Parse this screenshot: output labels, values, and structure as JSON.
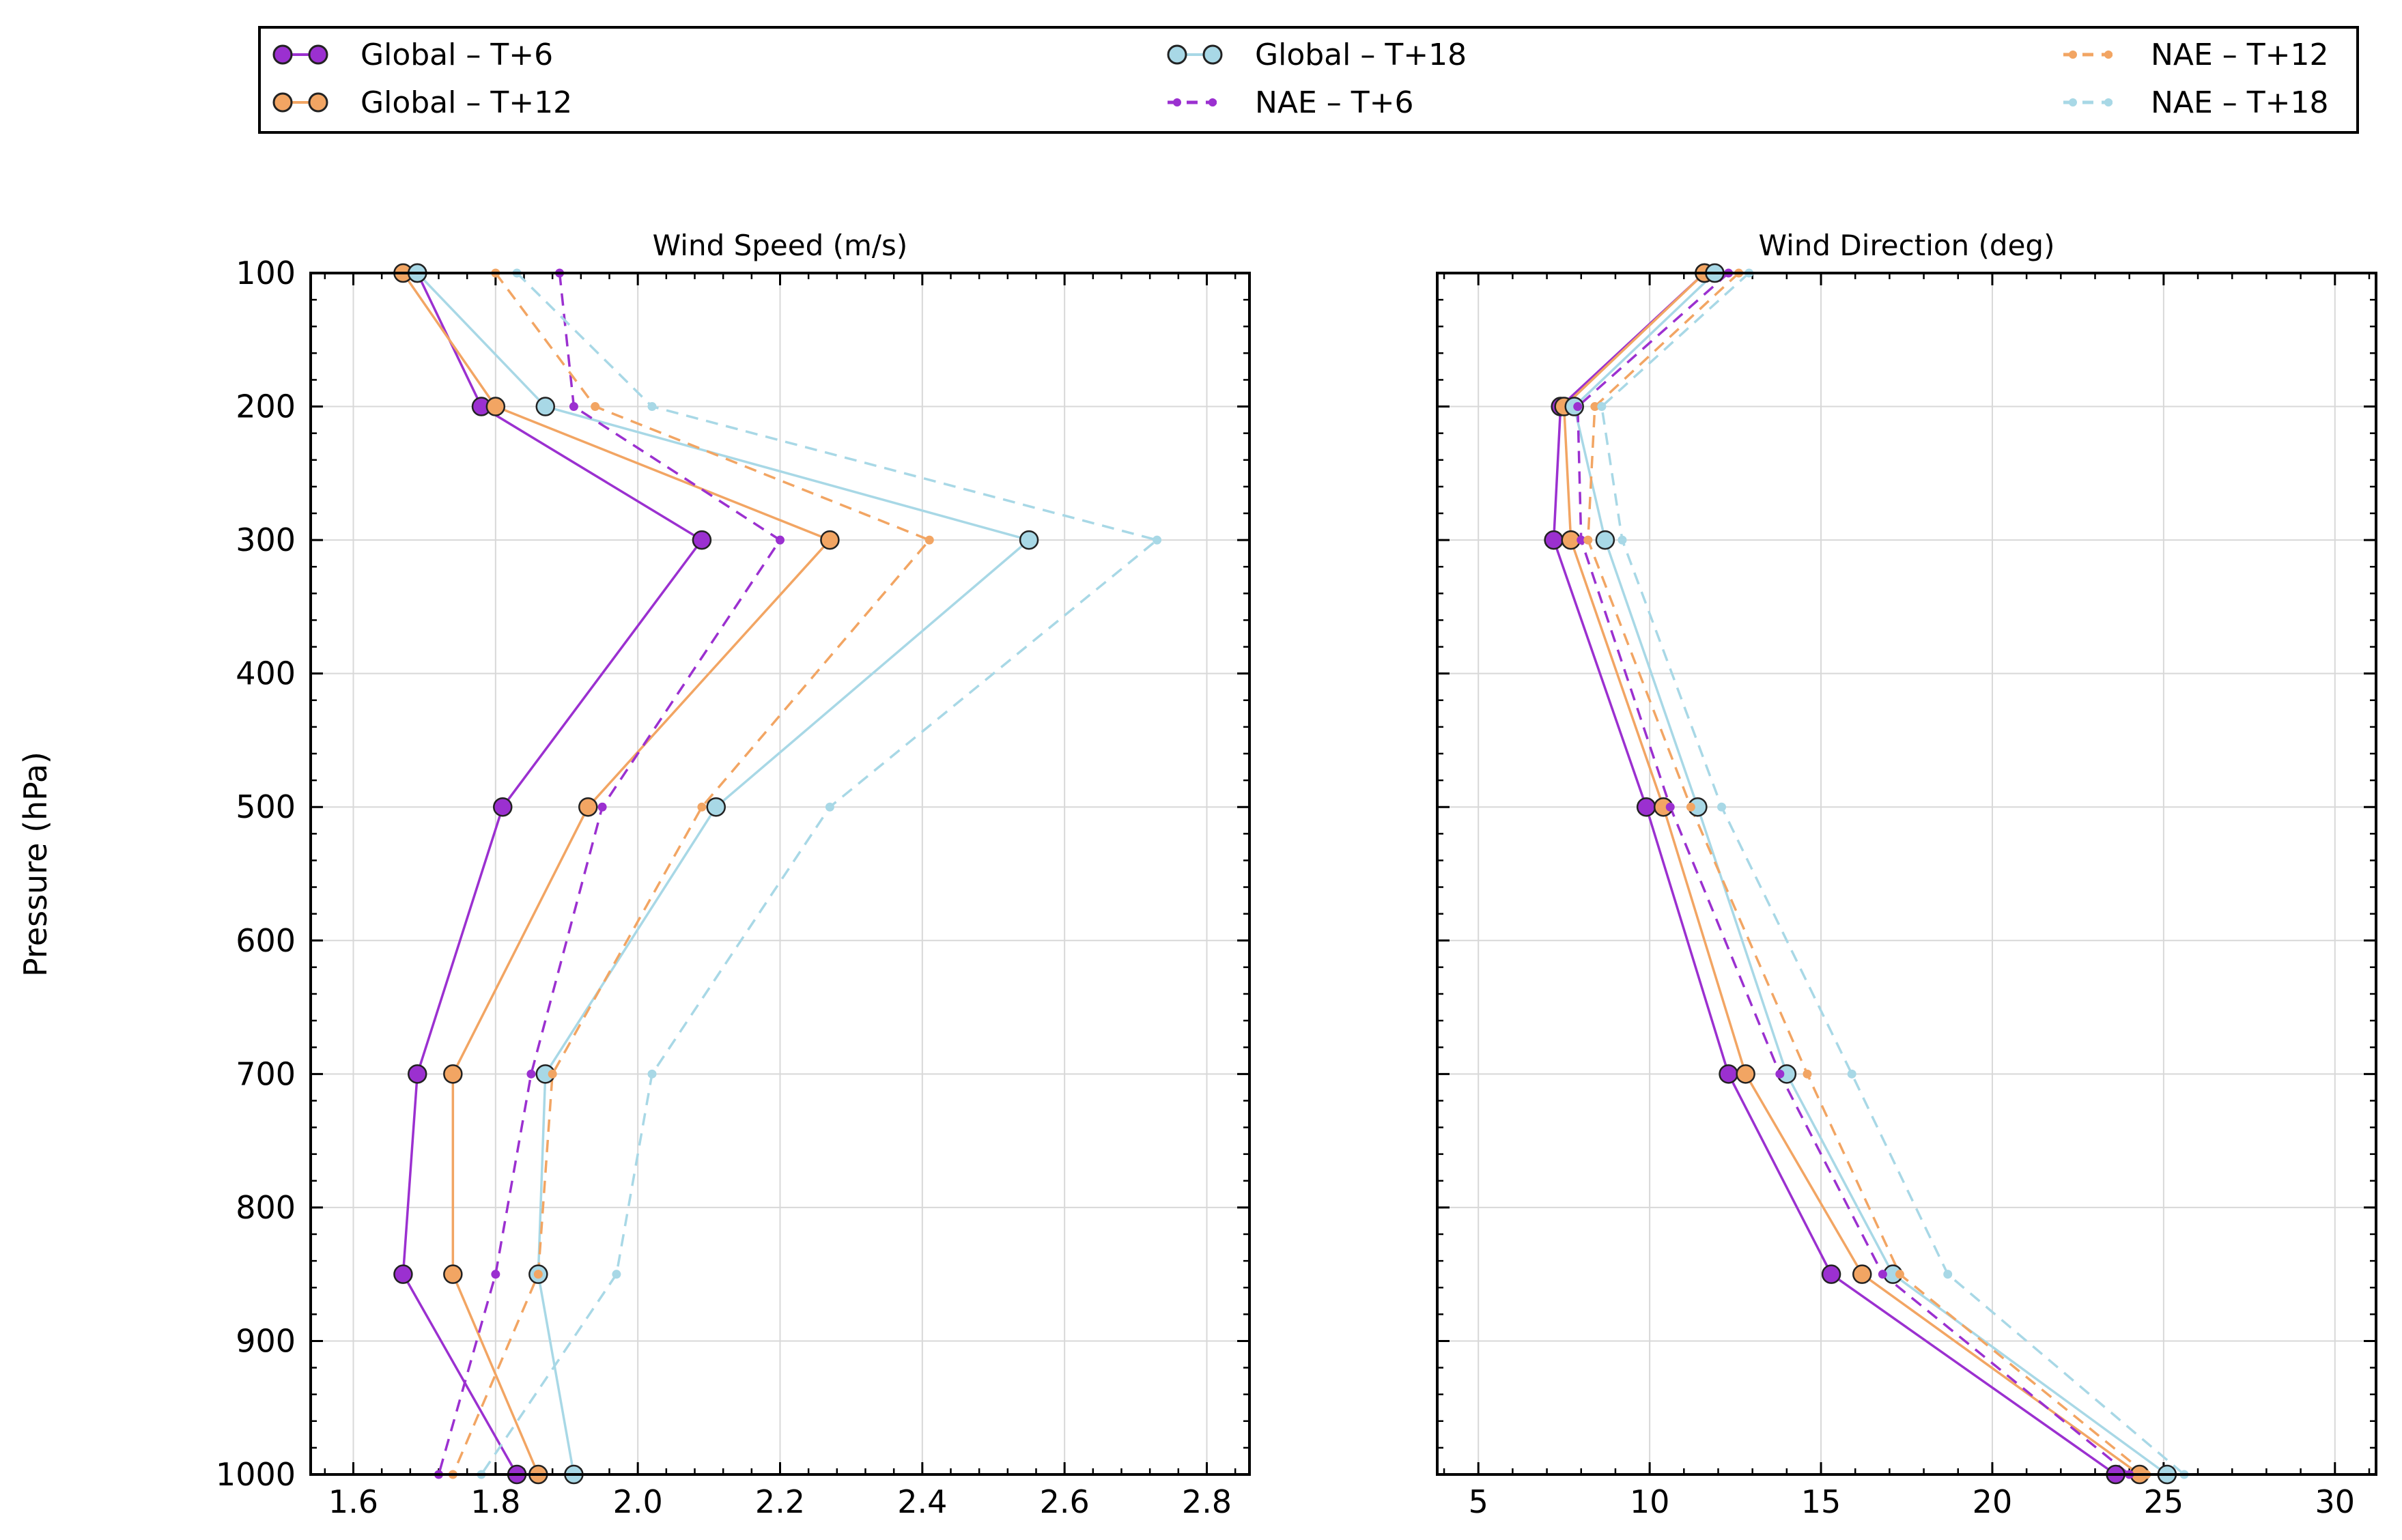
{
  "figure": {
    "ylabel": "Pressure (hPa)",
    "legend_position": "top"
  },
  "legend": {
    "entries": [
      {
        "label": "Global – T+6",
        "series": "global_t6"
      },
      {
        "label": "Global – T+12",
        "series": "global_t12"
      },
      {
        "label": "Global – T+18",
        "series": "global_t18"
      },
      {
        "label": "NAE – T+6",
        "series": "nae_t6"
      },
      {
        "label": "NAE – T+12",
        "series": "nae_t12"
      },
      {
        "label": "NAE – T+18",
        "series": "nae_t18"
      }
    ]
  },
  "styles": {
    "global_t6": {
      "color": "#9b30d0",
      "dash": "solid",
      "marker": "large-circle"
    },
    "global_t12": {
      "color": "#f2a563",
      "dash": "solid",
      "marker": "large-circle"
    },
    "global_t18": {
      "color": "#a8d8e6",
      "dash": "solid",
      "marker": "large-circle"
    },
    "nae_t6": {
      "color": "#9b30d0",
      "dash": "dashed",
      "marker": "small-dot"
    },
    "nae_t12": {
      "color": "#f2a563",
      "dash": "dashed",
      "marker": "small-dot"
    },
    "nae_t18": {
      "color": "#a8d8e6",
      "dash": "dashed",
      "marker": "small-dot"
    }
  },
  "chart_data": [
    {
      "type": "line",
      "title": "Wind Speed (m/s)",
      "xlabel": "",
      "ylabel": "Pressure (hPa)",
      "xlim": [
        1.54,
        2.86
      ],
      "ylim": [
        1000,
        100
      ],
      "xticks": [
        "1.6",
        "1.8",
        "2.0",
        "2.2",
        "2.4",
        "2.6",
        "2.8"
      ],
      "xtick_values": [
        1.6,
        1.8,
        2.0,
        2.2,
        2.4,
        2.6,
        2.8
      ],
      "yticks": [
        "100",
        "200",
        "300",
        "400",
        "500",
        "600",
        "700",
        "800",
        "900",
        "1000"
      ],
      "ytick_values": [
        100,
        200,
        300,
        400,
        500,
        600,
        700,
        800,
        900,
        1000
      ],
      "grid": true,
      "series": [
        {
          "key": "global_t6",
          "name": "Global – T+6",
          "pressure": [
            100,
            200,
            300,
            500,
            700,
            850,
            1000
          ],
          "values": [
            1.69,
            1.78,
            2.09,
            1.81,
            1.69,
            1.67,
            1.83
          ]
        },
        {
          "key": "global_t12",
          "name": "Global – T+12",
          "pressure": [
            100,
            200,
            300,
            500,
            700,
            850,
            1000
          ],
          "values": [
            1.67,
            1.8,
            2.27,
            1.93,
            1.74,
            1.74,
            1.86
          ]
        },
        {
          "key": "global_t18",
          "name": "Global – T+18",
          "pressure": [
            100,
            200,
            300,
            500,
            700,
            850,
            1000
          ],
          "values": [
            1.69,
            1.87,
            2.55,
            2.11,
            1.87,
            1.86,
            1.91
          ]
        },
        {
          "key": "nae_t6",
          "name": "NAE – T+6",
          "pressure": [
            100,
            200,
            300,
            500,
            700,
            850,
            1000
          ],
          "values": [
            1.89,
            1.91,
            2.2,
            1.95,
            1.85,
            1.8,
            1.72
          ]
        },
        {
          "key": "nae_t12",
          "name": "NAE – T+12",
          "pressure": [
            100,
            200,
            300,
            500,
            700,
            850,
            1000
          ],
          "values": [
            1.8,
            1.94,
            2.41,
            2.09,
            1.88,
            1.86,
            1.74
          ]
        },
        {
          "key": "nae_t18",
          "name": "NAE – T+18",
          "pressure": [
            100,
            200,
            300,
            500,
            700,
            850,
            1000
          ],
          "values": [
            1.83,
            2.02,
            2.73,
            2.27,
            2.02,
            1.97,
            1.78
          ]
        }
      ]
    },
    {
      "type": "line",
      "title": "Wind Direction (deg)",
      "xlabel": "",
      "ylabel": "",
      "xlim": [
        3.8,
        31.2
      ],
      "ylim": [
        1000,
        100
      ],
      "xticks": [
        "5",
        "10",
        "15",
        "20",
        "25",
        "30"
      ],
      "xtick_values": [
        5,
        10,
        15,
        20,
        25,
        30
      ],
      "yticks": [],
      "ytick_values": [
        100,
        200,
        300,
        400,
        500,
        600,
        700,
        800,
        900,
        1000
      ],
      "grid": true,
      "series": [
        {
          "key": "global_t6",
          "name": "Global – T+6",
          "pressure": [
            100,
            200,
            300,
            500,
            700,
            850,
            1000
          ],
          "values": [
            11.6,
            7.4,
            7.2,
            9.9,
            12.3,
            15.3,
            23.6
          ]
        },
        {
          "key": "global_t12",
          "name": "Global – T+12",
          "pressure": [
            100,
            200,
            300,
            500,
            700,
            850,
            1000
          ],
          "values": [
            11.6,
            7.5,
            7.7,
            10.4,
            12.8,
            16.2,
            24.3
          ]
        },
        {
          "key": "global_t18",
          "name": "Global – T+18",
          "pressure": [
            100,
            200,
            300,
            500,
            700,
            850,
            1000
          ],
          "values": [
            11.9,
            7.8,
            8.7,
            11.4,
            14.0,
            17.1,
            25.1
          ]
        },
        {
          "key": "nae_t6",
          "name": "NAE – T+6",
          "pressure": [
            100,
            200,
            300,
            500,
            700,
            850,
            1000
          ],
          "values": [
            12.3,
            7.9,
            8.0,
            10.6,
            13.8,
            16.8,
            24.0
          ]
        },
        {
          "key": "nae_t12",
          "name": "NAE – T+12",
          "pressure": [
            100,
            200,
            300,
            500,
            700,
            850,
            1000
          ],
          "values": [
            12.6,
            8.4,
            8.2,
            11.2,
            14.6,
            17.3,
            24.5
          ]
        },
        {
          "key": "nae_t18",
          "name": "NAE – T+18",
          "pressure": [
            100,
            200,
            300,
            500,
            700,
            850,
            1000
          ],
          "values": [
            12.9,
            8.6,
            9.2,
            12.1,
            15.9,
            18.7,
            25.6
          ]
        }
      ]
    }
  ]
}
